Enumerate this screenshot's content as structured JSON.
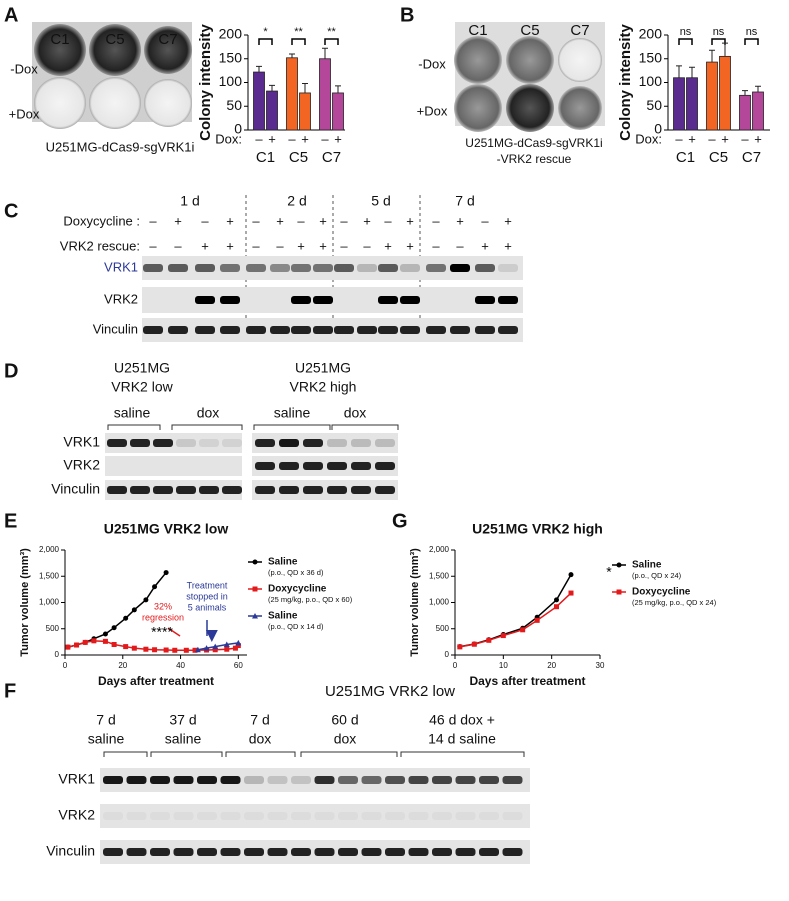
{
  "panel_labels": [
    "A",
    "B",
    "C",
    "D",
    "E",
    "F",
    "G"
  ],
  "chart_data": [
    {
      "type": "bar",
      "ylabel": "Colony intensity",
      "x_prefix": "Dox:",
      "categories": [
        "–",
        "+",
        "–",
        "+",
        "–",
        "+"
      ],
      "groups": [
        "C1",
        "C5",
        "C7"
      ],
      "colors": [
        "#5b2c8f",
        "#f26522",
        "#b5479b"
      ],
      "values": [
        122,
        82,
        152,
        78,
        150,
        78
      ],
      "errors": [
        12,
        12,
        8,
        20,
        22,
        15
      ],
      "significance": [
        "*",
        "**",
        "**"
      ],
      "ylim": [
        0,
        200
      ],
      "yticks": [
        0,
        50,
        100,
        150,
        200
      ]
    },
    {
      "type": "bar",
      "ylabel": "Colony intensity",
      "x_prefix": "Dox:",
      "categories": [
        "–",
        "+",
        "–",
        "+",
        "–",
        "+"
      ],
      "groups": [
        "C1",
        "C5",
        "C7"
      ],
      "colors": [
        "#5b2c8f",
        "#f26522",
        "#b5479b"
      ],
      "values": [
        110,
        110,
        143,
        155,
        73,
        80
      ],
      "errors": [
        25,
        22,
        25,
        28,
        10,
        12
      ],
      "significance": [
        "ns",
        "ns",
        "ns"
      ],
      "ylim": [
        0,
        200
      ],
      "yticks": [
        0,
        50,
        100,
        150,
        200
      ]
    },
    {
      "type": "line",
      "title": "U251MG VRK2 low",
      "xlabel": "Days after treatment",
      "ylabel": "Tumor volume (mm³)",
      "xlim": [
        0,
        63
      ],
      "xticks": [
        0,
        20,
        40,
        60
      ],
      "ylim": [
        0,
        2000
      ],
      "yticks": [
        0,
        500,
        {
          "value": 1000,
          "label": "1,000"
        },
        {
          "value": 1500,
          "label": "1,500"
        },
        {
          "value": 2000,
          "label": "2,000"
        }
      ],
      "series": [
        {
          "name": "Saline",
          "note": "(p.o., QD x 36 d)",
          "color": "#000000",
          "marker": "circle",
          "x": [
            1,
            4,
            7,
            10,
            14,
            17,
            21,
            24,
            28,
            31,
            35
          ],
          "values": [
            150,
            190,
            240,
            310,
            400,
            520,
            700,
            860,
            1050,
            1300,
            1570
          ]
        },
        {
          "name": "Doxycycline",
          "note": "(25 mg/kg, p.o., QD x 60)",
          "color": "#e31a1c",
          "marker": "square",
          "x": [
            1,
            4,
            7,
            10,
            14,
            17,
            21,
            24,
            28,
            31,
            35,
            38,
            42,
            45,
            49,
            52,
            56,
            59,
            60
          ],
          "values": [
            150,
            190,
            240,
            270,
            260,
            200,
            160,
            130,
            110,
            100,
            95,
            90,
            90,
            90,
            95,
            100,
            110,
            130,
            180
          ]
        },
        {
          "name": "Saline",
          "note": "(p.o., QD x 14 d)",
          "color": "#2b3a98",
          "marker": "triangle",
          "x": [
            46,
            49,
            52,
            56,
            60
          ],
          "values": [
            100,
            130,
            160,
            200,
            230
          ]
        }
      ],
      "annotations": [
        {
          "text": "32%",
          "color": "#e31a1c"
        },
        {
          "text": "regression",
          "color": "#e31a1c"
        },
        {
          "text": "****",
          "color": "#000000"
        },
        {
          "text": "Treatment",
          "color": "#2b3a98"
        },
        {
          "text": "stopped in",
          "color": "#2b3a98"
        },
        {
          "text": "5 animals",
          "color": "#2b3a98"
        }
      ]
    },
    {
      "type": "line",
      "title": "U251MG VRK2 high",
      "xlabel": "Days after treatment",
      "ylabel": "Tumor volume (mm³)",
      "xlim": [
        0,
        30
      ],
      "xticks": [
        0,
        10,
        20,
        30
      ],
      "ylim": [
        0,
        2000
      ],
      "yticks": [
        0,
        500,
        {
          "value": 1000,
          "label": "1,000"
        },
        {
          "value": 1500,
          "label": "1,500"
        },
        {
          "value": 2000,
          "label": "2,000"
        }
      ],
      "series": [
        {
          "name": "Saline",
          "note": "(p.o., QD x 24)",
          "color": "#000000",
          "marker": "circle",
          "x": [
            1,
            4,
            7,
            10,
            14,
            17,
            21,
            24
          ],
          "values": [
            160,
            210,
            290,
            390,
            510,
            720,
            1050,
            1530
          ]
        },
        {
          "name": "Doxycycline",
          "note": "(25 mg/kg, p.o., QD x 24)",
          "color": "#e31a1c",
          "marker": "square",
          "x": [
            1,
            4,
            7,
            10,
            14,
            17,
            21,
            24
          ],
          "values": [
            155,
            205,
            280,
            370,
            480,
            660,
            920,
            1180
          ]
        }
      ],
      "annotations": [
        {
          "text": "*",
          "color": "#000000"
        }
      ]
    }
  ],
  "panel_a": {
    "clones": [
      "C1",
      "C5",
      "C7"
    ],
    "rows": [
      "-Dox",
      "+Dox"
    ],
    "caption": "U251MG-dCas9-sgVRK1i"
  },
  "panel_b": {
    "clones": [
      "C1",
      "C5",
      "C7"
    ],
    "rows": [
      "-Dox",
      "+Dox"
    ],
    "caption": [
      "U251MG-dCas9-sgVRK1i",
      "-VRK2 rescue"
    ]
  },
  "panel_c": {
    "timepoints": [
      "1 d",
      "2 d",
      "5 d",
      "7 d"
    ],
    "row_labels": [
      "Doxycycline :",
      "VRK2 rescue:"
    ],
    "doxycycline": [
      "–",
      "+",
      "–",
      "+",
      "–",
      "+",
      "–",
      "+",
      "–",
      "+",
      "–",
      "+",
      "–",
      "+",
      "–",
      "+"
    ],
    "vrk2_rescue": [
      "–",
      "–",
      "+",
      "+",
      "–",
      "–",
      "+",
      "+",
      "–",
      "–",
      "+",
      "+",
      "–",
      "–",
      "+",
      "+"
    ],
    "blots": [
      "VRK1",
      "VRK2",
      "Vinculin"
    ]
  },
  "panel_d": {
    "groups": [
      [
        "U251MG",
        "VRK2 low"
      ],
      [
        "U251MG",
        "VRK2 high"
      ]
    ],
    "treatments": [
      "saline",
      "dox",
      "saline",
      "dox"
    ],
    "blots": [
      "VRK1",
      "VRK2",
      "Vinculin"
    ]
  },
  "panel_f": {
    "title": "U251MG VRK2 low",
    "groups": [
      [
        "7 d",
        "saline"
      ],
      [
        "37 d",
        "saline"
      ],
      [
        "7 d",
        "dox"
      ],
      [
        "60 d",
        "dox"
      ],
      [
        "46 d dox +",
        "14 d saline"
      ]
    ],
    "blots": [
      "VRK1",
      "VRK2",
      "Vinculin"
    ]
  }
}
